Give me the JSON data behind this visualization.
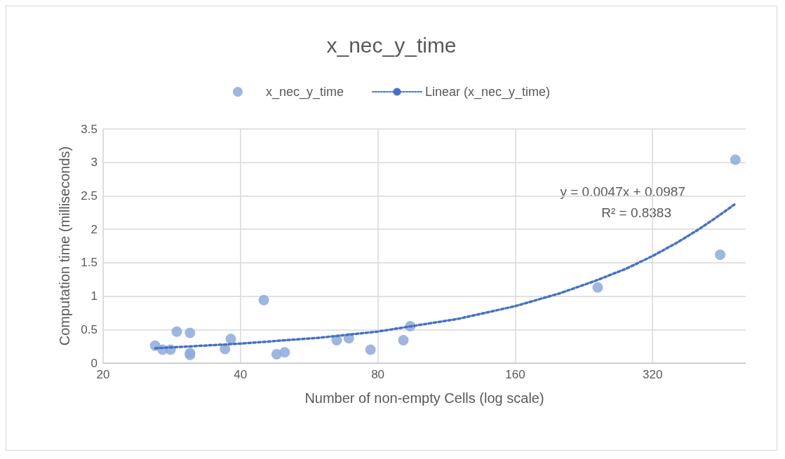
{
  "chart_data": {
    "type": "scatter",
    "title": "x_nec_y_time",
    "xlabel": "Number of non-empty Cells (log scale)",
    "ylabel": "Computation time (milliseconds)",
    "log": "x",
    "xlim": [
      20,
      512
    ],
    "xticks": [
      20,
      40,
      80,
      160,
      320
    ],
    "ylim": [
      0,
      3.5
    ],
    "yticks": [
      0,
      0.5,
      1,
      1.5,
      2,
      2.5,
      3,
      3.5
    ],
    "grid": true,
    "legend": "top",
    "marker": "circle",
    "annotations": [
      "y = 0.0047x + 0.0987",
      "R² = 0.8383"
    ],
    "series": [
      {
        "name": "x_nec_y_time",
        "color": "#8eaadb",
        "x": [
          26,
          27,
          28.1,
          29,
          31,
          31,
          31,
          37,
          38.1,
          45,
          48,
          50,
          65,
          69.1,
          77.1,
          91,
          94.2,
          242.6,
          450,
          486
        ],
        "values": [
          0.26,
          0.2,
          0.2,
          0.47,
          0.45,
          0.15,
          0.12,
          0.21,
          0.36,
          0.94,
          0.13,
          0.16,
          0.34,
          0.37,
          0.2,
          0.34,
          0.55,
          1.13,
          1.62,
          3.04
        ]
      },
      {
        "name": "Linear (x_nec_y_time)",
        "type": "line",
        "color": "#4472c4",
        "line_style": "dotted",
        "marker": "none",
        "x": [
          26,
          40,
          60,
          80,
          120,
          160,
          200,
          240,
          280,
          320,
          360,
          400,
          440,
          486
        ],
        "values": [
          0.22,
          0.29,
          0.38,
          0.47,
          0.66,
          0.85,
          1.04,
          1.23,
          1.41,
          1.6,
          1.79,
          1.98,
          2.17,
          2.38
        ]
      }
    ]
  }
}
